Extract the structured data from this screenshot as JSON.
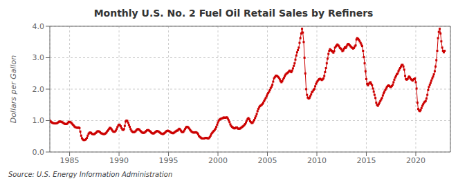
{
  "chart_data": {
    "type": "line",
    "title": "Monthly U.S. No. 2 Fuel Oil Retail Sales by Refiners",
    "ylabel": "Dollars per Gallon",
    "annotations": [
      "Source: U.S. Energy Information Administration"
    ],
    "color": "#cc0000",
    "marker": "square",
    "grid": true,
    "xlim": [
      1983.0,
      2023.5
    ],
    "xticks": [
      1985,
      1990,
      1995,
      2000,
      2005,
      2010,
      2015,
      2020
    ],
    "ylim": [
      0.0,
      4.0
    ],
    "yticks": [
      {
        "value": 0.0,
        "label": "0.0"
      },
      {
        "value": 1.0,
        "label": "1.0"
      },
      {
        "value": 2.0,
        "label": "2.0"
      },
      {
        "value": 3.0,
        "label": "3.0"
      },
      {
        "value": 4.0,
        "label": "4.0"
      }
    ],
    "x": [
      1983.0,
      1983.08,
      1983.17,
      1983.25,
      1983.33,
      1983.42,
      1983.5,
      1983.58,
      1983.67,
      1983.75,
      1983.83,
      1983.92,
      1984.0,
      1984.08,
      1984.17,
      1984.25,
      1984.33,
      1984.42,
      1984.5,
      1984.58,
      1984.67,
      1984.75,
      1984.83,
      1984.92,
      1985.0,
      1985.08,
      1985.17,
      1985.25,
      1985.33,
      1985.42,
      1985.5,
      1985.58,
      1985.67,
      1985.75,
      1985.83,
      1985.92,
      1986.0,
      1986.08,
      1986.17,
      1986.25,
      1986.33,
      1986.42,
      1986.5,
      1986.58,
      1986.67,
      1986.75,
      1986.83,
      1986.92,
      1987.0,
      1987.08,
      1987.17,
      1987.25,
      1987.33,
      1987.42,
      1987.5,
      1987.58,
      1987.67,
      1987.75,
      1987.83,
      1987.92,
      1988.0,
      1988.08,
      1988.17,
      1988.25,
      1988.33,
      1988.42,
      1988.5,
      1988.58,
      1988.67,
      1988.75,
      1988.83,
      1988.92,
      1989.0,
      1989.08,
      1989.17,
      1989.25,
      1989.33,
      1989.42,
      1989.5,
      1989.58,
      1989.67,
      1989.75,
      1989.83,
      1989.92,
      1990.0,
      1990.08,
      1990.17,
      1990.25,
      1990.33,
      1990.42,
      1990.5,
      1990.58,
      1990.67,
      1990.75,
      1990.83,
      1990.92,
      1991.0,
      1991.08,
      1991.17,
      1991.25,
      1991.33,
      1991.42,
      1991.5,
      1991.58,
      1991.67,
      1991.75,
      1991.83,
      1991.92,
      1992.0,
      1992.08,
      1992.17,
      1992.25,
      1992.33,
      1992.42,
      1992.5,
      1992.58,
      1992.67,
      1992.75,
      1992.83,
      1992.92,
      1993.0,
      1993.08,
      1993.17,
      1993.25,
      1993.33,
      1993.42,
      1993.5,
      1993.58,
      1993.67,
      1993.75,
      1993.83,
      1993.92,
      1994.0,
      1994.08,
      1994.17,
      1994.25,
      1994.33,
      1994.42,
      1994.5,
      1994.58,
      1994.67,
      1994.75,
      1994.83,
      1994.92,
      1995.0,
      1995.08,
      1995.17,
      1995.25,
      1995.33,
      1995.42,
      1995.5,
      1995.58,
      1995.67,
      1995.75,
      1995.83,
      1995.92,
      1996.0,
      1996.08,
      1996.17,
      1996.25,
      1996.33,
      1996.42,
      1996.5,
      1996.58,
      1996.67,
      1996.75,
      1996.83,
      1996.92,
      1997.0,
      1997.08,
      1997.17,
      1997.25,
      1997.33,
      1997.42,
      1997.5,
      1997.58,
      1997.67,
      1997.75,
      1997.83,
      1997.92,
      1998.0,
      1998.08,
      1998.17,
      1998.25,
      1998.33,
      1998.42,
      1998.5,
      1998.58,
      1998.67,
      1998.75,
      1998.83,
      1998.92,
      1999.0,
      1999.08,
      1999.17,
      1999.25,
      1999.33,
      1999.42,
      1999.5,
      1999.58,
      1999.67,
      1999.75,
      1999.83,
      1999.92,
      2000.0,
      2000.08,
      2000.17,
      2000.25,
      2000.33,
      2000.42,
      2000.5,
      2000.58,
      2000.67,
      2000.75,
      2000.83,
      2000.92,
      2001.0,
      2001.08,
      2001.17,
      2001.25,
      2001.33,
      2001.42,
      2001.5,
      2001.58,
      2001.67,
      2001.75,
      2001.83,
      2001.92,
      2002.0,
      2002.08,
      2002.17,
      2002.25,
      2002.33,
      2002.42,
      2002.5,
      2002.58,
      2002.67,
      2002.75,
      2002.83,
      2002.92,
      2003.0,
      2003.08,
      2003.17,
      2003.25,
      2003.33,
      2003.42,
      2003.5,
      2003.58,
      2003.67,
      2003.75,
      2003.83,
      2003.92,
      2004.0,
      2004.08,
      2004.17,
      2004.25,
      2004.33,
      2004.42,
      2004.5,
      2004.58,
      2004.67,
      2004.75,
      2004.83,
      2004.92,
      2005.0,
      2005.08,
      2005.17,
      2005.25,
      2005.33,
      2005.42,
      2005.5,
      2005.58,
      2005.67,
      2005.75,
      2005.83,
      2005.92,
      2006.0,
      2006.08,
      2006.17,
      2006.25,
      2006.33,
      2006.42,
      2006.5,
      2006.58,
      2006.67,
      2006.75,
      2006.83,
      2006.92,
      2007.0,
      2007.08,
      2007.17,
      2007.25,
      2007.33,
      2007.42,
      2007.5,
      2007.58,
      2007.67,
      2007.75,
      2007.83,
      2007.92,
      2008.0,
      2008.08,
      2008.17,
      2008.25,
      2008.33,
      2008.42,
      2008.5,
      2008.58,
      2008.67,
      2008.75,
      2008.83,
      2008.92,
      2009.0,
      2009.08,
      2009.17,
      2009.25,
      2009.33,
      2009.42,
      2009.5,
      2009.58,
      2009.67,
      2009.75,
      2009.83,
      2009.92,
      2010.0,
      2010.08,
      2010.17,
      2010.25,
      2010.33,
      2010.42,
      2010.5,
      2010.58,
      2010.67,
      2010.75,
      2010.83,
      2010.92,
      2011.0,
      2011.08,
      2011.17,
      2011.25,
      2011.33,
      2011.42,
      2011.5,
      2011.58,
      2011.67,
      2011.75,
      2011.83,
      2011.92,
      2012.0,
      2012.08,
      2012.17,
      2012.25,
      2012.33,
      2012.42,
      2012.5,
      2012.58,
      2012.67,
      2012.75,
      2012.83,
      2012.92,
      2013.0,
      2013.08,
      2013.17,
      2013.25,
      2013.33,
      2013.42,
      2013.5,
      2013.58,
      2013.67,
      2013.75,
      2013.83,
      2013.92,
      2014.0,
      2014.08,
      2014.17,
      2014.25,
      2014.33,
      2014.42,
      2014.5,
      2014.58,
      2014.67,
      2014.75,
      2014.83,
      2014.92,
      2015.0,
      2015.08,
      2015.17,
      2015.25,
      2015.33,
      2015.42,
      2015.5,
      2015.58,
      2015.67,
      2015.75,
      2015.83,
      2015.92,
      2016.0,
      2016.08,
      2016.17,
      2016.25,
      2016.33,
      2016.42,
      2016.5,
      2016.58,
      2016.67,
      2016.75,
      2016.83,
      2016.92,
      2017.0,
      2017.08,
      2017.17,
      2017.25,
      2017.33,
      2017.42,
      2017.5,
      2017.58,
      2017.67,
      2017.75,
      2017.83,
      2017.92,
      2018.0,
      2018.08,
      2018.17,
      2018.25,
      2018.33,
      2018.42,
      2018.5,
      2018.58,
      2018.67,
      2018.75,
      2018.83,
      2018.92,
      2019.0,
      2019.08,
      2019.17,
      2019.25,
      2019.33,
      2019.42,
      2019.5,
      2019.58,
      2019.67,
      2019.75,
      2019.83,
      2019.92,
      2020.0,
      2020.08,
      2020.17,
      2020.25,
      2020.33,
      2020.42,
      2020.5,
      2020.58,
      2020.67,
      2020.75,
      2020.83,
      2020.92,
      2021.0,
      2021.08,
      2021.17,
      2021.25,
      2021.33,
      2021.42,
      2021.5,
      2021.58,
      2021.67,
      2021.75,
      2021.83,
      2021.92,
      2022.0,
      2022.08,
      2022.17,
      2022.25,
      2022.33,
      2022.42,
      2022.5,
      2022.58,
      2022.67,
      2022.75,
      2022.83,
      2022.92
    ],
    "values": [
      1.0,
      0.97,
      0.95,
      0.93,
      0.92,
      0.91,
      0.91,
      0.91,
      0.91,
      0.92,
      0.94,
      0.96,
      0.97,
      0.97,
      0.96,
      0.95,
      0.93,
      0.91,
      0.9,
      0.89,
      0.89,
      0.9,
      0.93,
      0.96,
      0.96,
      0.95,
      0.93,
      0.9,
      0.87,
      0.84,
      0.81,
      0.79,
      0.78,
      0.77,
      0.77,
      0.78,
      0.76,
      0.65,
      0.52,
      0.44,
      0.4,
      0.38,
      0.38,
      0.39,
      0.41,
      0.45,
      0.52,
      0.58,
      0.61,
      0.62,
      0.61,
      0.58,
      0.57,
      0.56,
      0.57,
      0.59,
      0.61,
      0.64,
      0.66,
      0.66,
      0.65,
      0.63,
      0.6,
      0.59,
      0.58,
      0.57,
      0.57,
      0.58,
      0.6,
      0.63,
      0.67,
      0.7,
      0.74,
      0.77,
      0.75,
      0.72,
      0.68,
      0.65,
      0.64,
      0.65,
      0.68,
      0.73,
      0.79,
      0.84,
      0.87,
      0.86,
      0.82,
      0.76,
      0.72,
      0.7,
      0.73,
      0.83,
      0.97,
      1.0,
      0.99,
      0.93,
      0.86,
      0.8,
      0.73,
      0.68,
      0.65,
      0.63,
      0.63,
      0.64,
      0.66,
      0.69,
      0.72,
      0.73,
      0.72,
      0.7,
      0.67,
      0.64,
      0.62,
      0.61,
      0.61,
      0.62,
      0.64,
      0.67,
      0.69,
      0.7,
      0.69,
      0.67,
      0.65,
      0.62,
      0.6,
      0.59,
      0.59,
      0.61,
      0.63,
      0.65,
      0.67,
      0.66,
      0.65,
      0.63,
      0.61,
      0.59,
      0.58,
      0.57,
      0.58,
      0.6,
      0.62,
      0.65,
      0.67,
      0.68,
      0.67,
      0.66,
      0.64,
      0.62,
      0.61,
      0.6,
      0.6,
      0.62,
      0.64,
      0.66,
      0.68,
      0.68,
      0.71,
      0.74,
      0.72,
      0.68,
      0.64,
      0.63,
      0.64,
      0.68,
      0.73,
      0.77,
      0.8,
      0.8,
      0.78,
      0.75,
      0.71,
      0.68,
      0.65,
      0.63,
      0.62,
      0.62,
      0.62,
      0.63,
      0.62,
      0.6,
      0.56,
      0.51,
      0.48,
      0.46,
      0.44,
      0.43,
      0.43,
      0.43,
      0.44,
      0.45,
      0.45,
      0.44,
      0.43,
      0.44,
      0.47,
      0.52,
      0.57,
      0.61,
      0.64,
      0.67,
      0.7,
      0.74,
      0.8,
      0.87,
      0.94,
      1.0,
      1.03,
      1.05,
      1.06,
      1.07,
      1.08,
      1.1,
      1.09,
      1.09,
      1.1,
      1.1,
      1.06,
      1.01,
      0.95,
      0.88,
      0.83,
      0.8,
      0.78,
      0.76,
      0.75,
      0.76,
      0.78,
      0.78,
      0.75,
      0.74,
      0.74,
      0.75,
      0.77,
      0.79,
      0.81,
      0.83,
      0.86,
      0.89,
      0.94,
      1.0,
      1.05,
      1.08,
      1.04,
      0.98,
      0.95,
      0.92,
      0.93,
      0.97,
      1.02,
      1.08,
      1.14,
      1.21,
      1.3,
      1.37,
      1.42,
      1.46,
      1.48,
      1.5,
      1.53,
      1.57,
      1.62,
      1.67,
      1.72,
      1.77,
      1.83,
      1.88,
      1.92,
      1.97,
      2.03,
      2.08,
      2.14,
      2.24,
      2.34,
      2.38,
      2.42,
      2.43,
      2.41,
      2.39,
      2.36,
      2.31,
      2.25,
      2.22,
      2.25,
      2.31,
      2.36,
      2.41,
      2.46,
      2.49,
      2.51,
      2.53,
      2.56,
      2.59,
      2.56,
      2.54,
      2.59,
      2.66,
      2.74,
      2.82,
      2.94,
      3.07,
      3.17,
      3.24,
      3.32,
      3.47,
      3.62,
      3.77,
      3.92,
      3.8,
      3.5,
      3.0,
      2.5,
      2.0,
      1.82,
      1.73,
      1.7,
      1.72,
      1.77,
      1.83,
      1.9,
      1.93,
      1.97,
      2.01,
      2.09,
      2.17,
      2.22,
      2.26,
      2.3,
      2.32,
      2.33,
      2.31,
      2.29,
      2.31,
      2.34,
      2.42,
      2.54,
      2.67,
      2.82,
      2.97,
      3.12,
      3.22,
      3.27,
      3.24,
      3.22,
      3.19,
      3.16,
      3.21,
      3.32,
      3.36,
      3.39,
      3.42,
      3.39,
      3.36,
      3.31,
      3.29,
      3.26,
      3.21,
      3.23,
      3.29,
      3.33,
      3.31,
      3.36,
      3.41,
      3.44,
      3.42,
      3.39,
      3.36,
      3.33,
      3.31,
      3.29,
      3.31,
      3.36,
      3.39,
      3.58,
      3.62,
      3.6,
      3.57,
      3.52,
      3.47,
      3.42,
      3.37,
      3.22,
      3.02,
      2.82,
      2.57,
      2.32,
      2.17,
      2.12,
      2.17,
      2.2,
      2.22,
      2.17,
      2.12,
      2.02,
      1.92,
      1.82,
      1.72,
      1.57,
      1.5,
      1.47,
      1.52,
      1.57,
      1.62,
      1.67,
      1.72,
      1.8,
      1.87,
      1.92,
      1.97,
      2.02,
      2.07,
      2.1,
      2.12,
      2.1,
      2.07,
      2.07,
      2.1,
      2.14,
      2.22,
      2.3,
      2.37,
      2.42,
      2.47,
      2.5,
      2.57,
      2.62,
      2.67,
      2.72,
      2.77,
      2.77,
      2.72,
      2.62,
      2.42,
      2.32,
      2.3,
      2.32,
      2.37,
      2.4,
      2.37,
      2.32,
      2.3,
      2.27,
      2.3,
      2.32,
      2.34,
      2.22,
      2.02,
      1.57,
      1.37,
      1.32,
      1.3,
      1.34,
      1.4,
      1.47,
      1.52,
      1.57,
      1.6,
      1.62,
      1.7,
      1.82,
      1.97,
      2.07,
      2.14,
      2.2,
      2.27,
      2.34,
      2.4,
      2.47,
      2.57,
      2.72,
      2.92,
      3.22,
      3.62,
      3.82,
      3.92,
      3.77,
      3.52,
      3.32,
      3.22,
      3.17,
      3.22
    ]
  }
}
